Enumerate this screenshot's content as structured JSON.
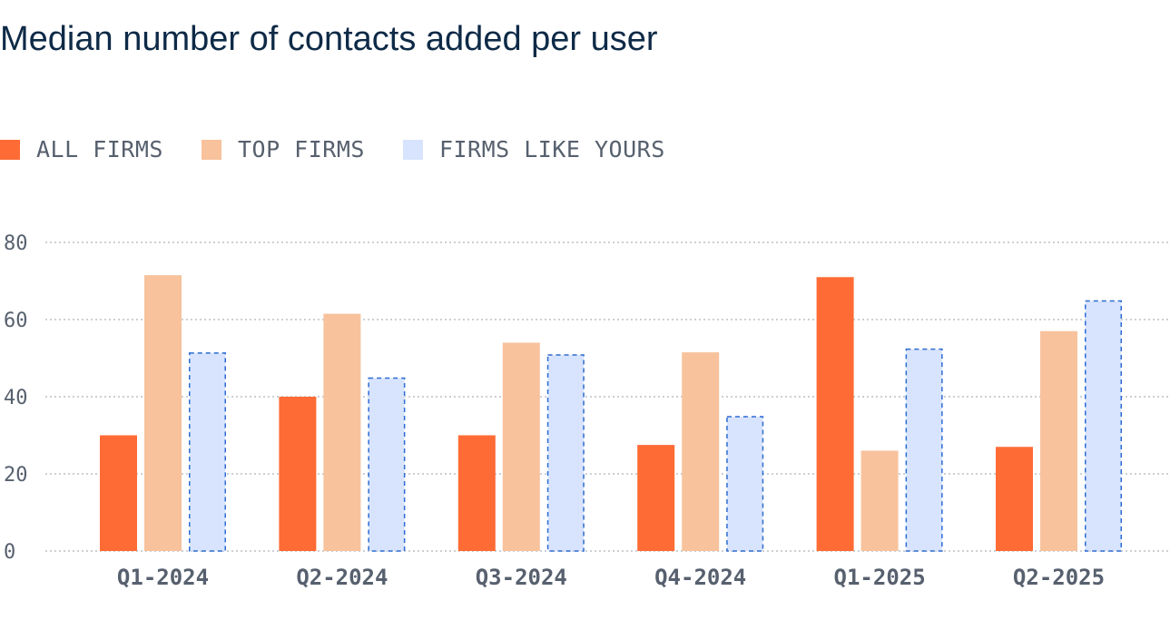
{
  "title": "Median number of contacts added per user",
  "legend": [
    {
      "label": "ALL FIRMS",
      "color": "#ff6b35"
    },
    {
      "label": "TOP FIRMS",
      "color": "#f7c29c"
    },
    {
      "label": "FIRMS LIKE YOURS",
      "color": "#d8e4fd",
      "border": "#2d6bd1"
    }
  ],
  "chart_data": {
    "type": "bar",
    "title": "Median number of contacts added per user",
    "xlabel": "",
    "ylabel": "",
    "categories": [
      "Q1-2024",
      "Q2-2024",
      "Q3-2024",
      "Q4-2024",
      "Q1-2025",
      "Q2-2025"
    ],
    "series": [
      {
        "name": "ALL FIRMS",
        "values": [
          30,
          40,
          30,
          27.5,
          71,
          27
        ],
        "color": "#ff6b35"
      },
      {
        "name": "TOP FIRMS",
        "values": [
          71.5,
          61.5,
          54,
          51.5,
          26,
          57
        ],
        "color": "#f7c29c"
      },
      {
        "name": "FIRMS LIKE YOURS",
        "values": [
          51.5,
          45,
          51,
          35,
          52.5,
          65
        ],
        "color": "#d8e4fd",
        "border": "#2d6bd1",
        "dashed": true
      }
    ],
    "ylim": [
      0,
      80
    ],
    "yticks": [
      0,
      20,
      40,
      60,
      80
    ],
    "grid": true,
    "legend_position": "top-left"
  }
}
